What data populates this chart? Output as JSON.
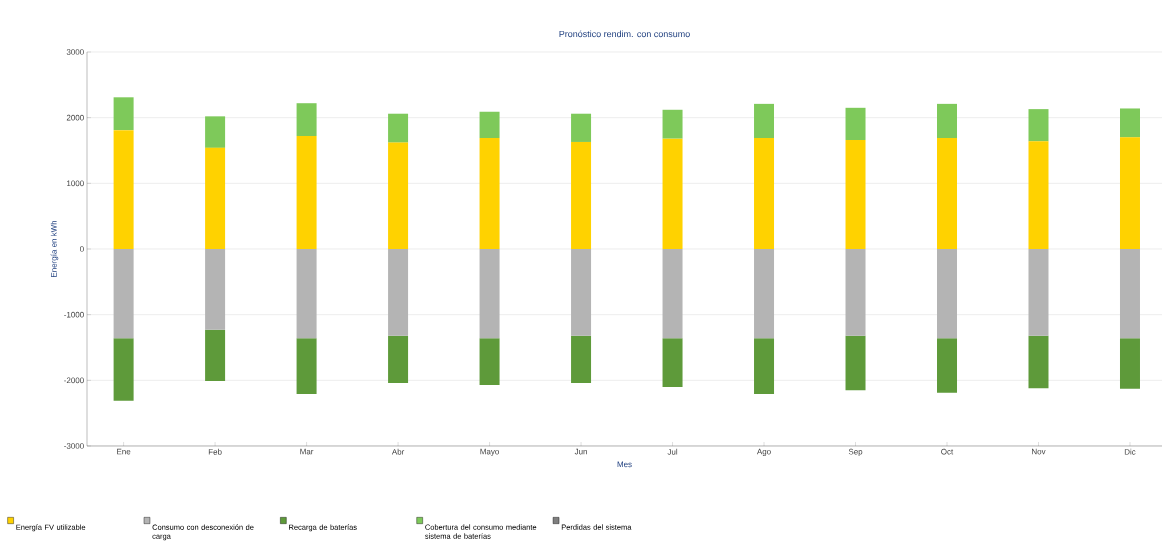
{
  "chart_data": {
    "type": "bar",
    "stacked": true,
    "title": "Pronóstico rendim. con consumo",
    "xlabel": "Mes",
    "ylabel": "Energía en kWh",
    "categories": [
      "Ene",
      "Feb",
      "Mar",
      "Abr",
      "Mayo",
      "Jun",
      "Jul",
      "Ago",
      "Sep",
      "Oct",
      "Nov",
      "Dic"
    ],
    "series": [
      {
        "name": "Energía FV utilizable",
        "color": "#ffd200",
        "values": [
          1810,
          1540,
          1720,
          1620,
          1690,
          1630,
          1680,
          1690,
          1660,
          1690,
          1640,
          1700
        ]
      },
      {
        "name": "Consumo con desconexión de carga",
        "color": "#b4b4b4",
        "values": [
          -1360,
          -1230,
          -1360,
          -1320,
          -1360,
          -1320,
          -1360,
          -1360,
          -1320,
          -1360,
          -1320,
          -1360
        ]
      },
      {
        "name": "Recarga de baterías",
        "color": "#5e9a3a",
        "values": [
          -950,
          -780,
          -850,
          -720,
          -710,
          -720,
          -740,
          -850,
          -830,
          -830,
          -800,
          -770
        ]
      },
      {
        "name": "Cobertura del consumo mediante sistema de baterías",
        "color": "#7ec95a",
        "values": [
          500,
          480,
          500,
          440,
          400,
          430,
          440,
          520,
          490,
          520,
          490,
          440
        ]
      },
      {
        "name": "Perdidas del sistema",
        "color": "#7f7f7f",
        "values": [
          0,
          0,
          0,
          0,
          0,
          0,
          0,
          0,
          0,
          0,
          0,
          0
        ]
      }
    ],
    "ylim": [
      -3000,
      3000
    ],
    "yticks": [
      -3000,
      -2000,
      -1000,
      0,
      1000,
      2000,
      3000
    ],
    "grid": "y",
    "legend": "bottom left"
  }
}
